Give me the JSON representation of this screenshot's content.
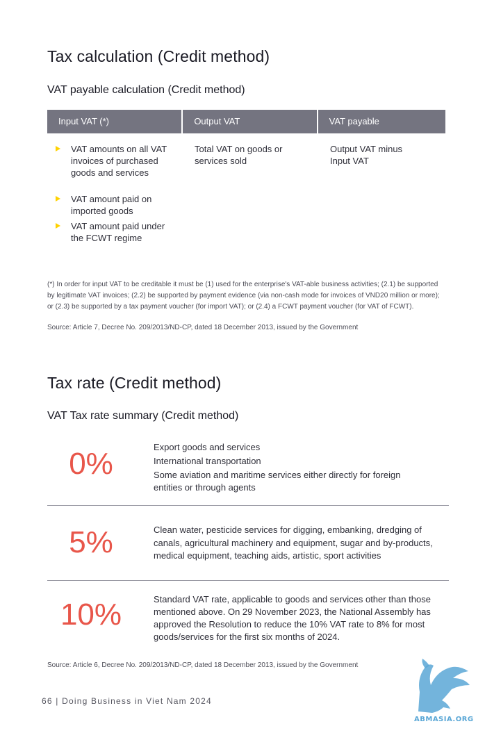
{
  "section1": {
    "title": "Tax calculation (Credit method)",
    "subtitle": "VAT payable calculation (Credit method)",
    "table": {
      "headers": [
        "Input VAT (*)",
        "Output VAT",
        "VAT payable"
      ],
      "input_items": [
        "VAT amounts on all VAT invoices of purchased goods and services",
        "VAT amount paid on imported goods",
        "VAT amount paid under the FCWT regime"
      ],
      "output": "Total VAT on goods or services sold",
      "payable": "Output VAT minus Input VAT"
    },
    "note": "(*) In order for input VAT to be creditable it must be (1) used for the enterprise's VAT-able business activities; (2.1) be supported by legitimate VAT invoices; (2.2) be supported by payment evidence (via non-cash mode for invoices of VND20 million or more); or (2.3) be supported by a tax payment voucher (for import VAT); or (2.4) a FCWT payment voucher (for VAT of FCWT).",
    "source": "Source: Article 7, Decree No. 209/2013/ND-CP, dated 18 December 2013, issued by the Government"
  },
  "section2": {
    "title": "Tax rate (Credit method)",
    "subtitle": "VAT Tax rate summary (Credit method)",
    "rates": [
      {
        "rate": "0%",
        "lines": [
          "Export goods and services",
          "International transportation",
          "Some aviation and maritime services either directly for foreign entities or through agents"
        ]
      },
      {
        "rate": "5%",
        "lines": [
          "Clean water, pesticide services for digging, embanking, dredging of canals, agricultural machinery and equipment, sugar and by-products, medical equipment, teaching aids, artistic, sport activities"
        ]
      },
      {
        "rate": "10%",
        "lines": [
          "Standard VAT rate, applicable to goods and services other than those mentioned above. On 29 November 2023, the National Assembly has approved the Resolution to reduce the 10% VAT rate to 8% for most goods/services for the first six months of 2024."
        ]
      }
    ],
    "source": "Source: Article 6, Decree No. 209/2013/ND-CP, dated 18 December 2013, issued by the Government"
  },
  "footer": {
    "page": "66",
    "title": "Doing Business in Viet Nam 2024"
  },
  "watermark": {
    "text": "ABMASIA.ORG",
    "color": "#5aa7d6"
  }
}
